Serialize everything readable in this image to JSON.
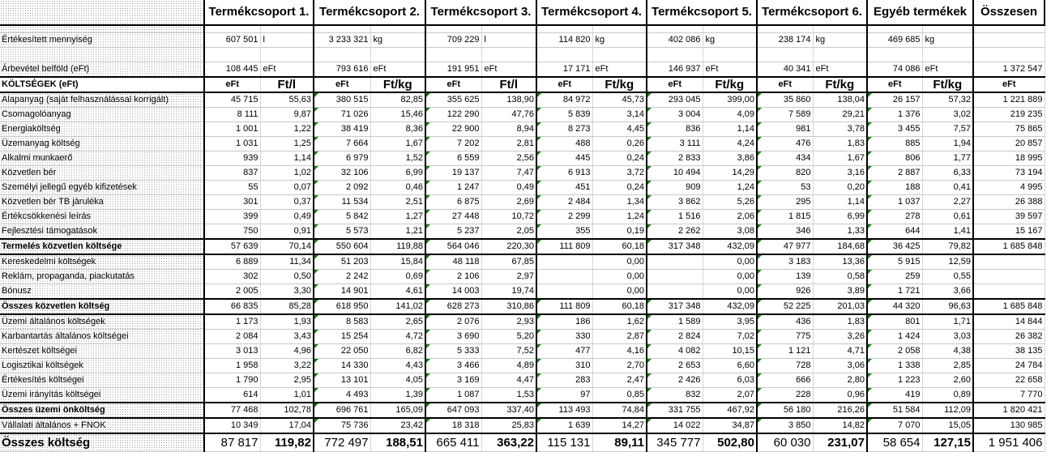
{
  "header": {
    "groups": [
      "Termékcsoport 1.",
      "Termékcsoport 2.",
      "Termékcsoport 3.",
      "Termékcsoport 4.",
      "Termékcsoport 5.",
      "Termékcsoport 6.",
      "Egyéb termékek"
    ],
    "total_label": "Összesen"
  },
  "volume_row": {
    "label": "Értékesített mennyiség",
    "cells": [
      [
        "607 501",
        "l"
      ],
      [
        "3 233 321",
        "kg"
      ],
      [
        "709 229",
        "l"
      ],
      [
        "114 820",
        "kg"
      ],
      [
        "402 086",
        "kg"
      ],
      [
        "238 174",
        "kg"
      ],
      [
        "469 685",
        "kg"
      ]
    ],
    "total": ""
  },
  "revenue_row": {
    "label": "Árbevétel belföld (eFt)",
    "cells": [
      [
        "108 445",
        "eFt"
      ],
      [
        "793 616",
        "eFt"
      ],
      [
        "191 951",
        "eFt"
      ],
      [
        "17 171",
        "eFt"
      ],
      [
        "146 937",
        "eFt"
      ],
      [
        "40 341",
        "eFt"
      ],
      [
        "74 086",
        "eFt"
      ]
    ],
    "total": "1 372 547"
  },
  "column_header": {
    "label": "KÖLTSÉGEK (eFt)",
    "cols": [
      [
        "eFt",
        "Ft/l"
      ],
      [
        "eFt",
        "Ft/kg"
      ],
      [
        "eFt",
        "Ft/l"
      ],
      [
        "eFt",
        "Ft/kg"
      ],
      [
        "eFt",
        "Ft/kg"
      ],
      [
        "eFt",
        "Ft/kg"
      ],
      [
        "eFt",
        "Ft/kg"
      ]
    ],
    "total": "eFt"
  },
  "rows": [
    {
      "type": "item",
      "label": "Alapanyag (saját felhasználással korrigált)",
      "v": [
        "45 715",
        "55,63",
        "380 515",
        "82,85",
        "355 625",
        "138,90",
        "84 972",
        "45,73",
        "293 045",
        "399,00",
        "35 860",
        "138,04",
        "26 157",
        "57,32"
      ],
      "total": "1 221 889"
    },
    {
      "type": "item",
      "label": "Csomagolóanyag",
      "v": [
        "8 111",
        "9,87",
        "71 026",
        "15,46",
        "122 290",
        "47,76",
        "5 839",
        "3,14",
        "3 004",
        "4,09",
        "7 589",
        "29,21",
        "1 376",
        "3,02"
      ],
      "total": "219 235"
    },
    {
      "type": "item",
      "label": "Energiaköltség",
      "v": [
        "1 001",
        "1,22",
        "38 419",
        "8,36",
        "22 900",
        "8,94",
        "8 273",
        "4,45",
        "836",
        "1,14",
        "981",
        "3,78",
        "3 455",
        "7,57"
      ],
      "total": "75 865"
    },
    {
      "type": "item",
      "label": "Üzemanyag költség",
      "v": [
        "1 031",
        "1,25",
        "7 664",
        "1,67",
        "7 202",
        "2,81",
        "488",
        "0,26",
        "3 111",
        "4,24",
        "476",
        "1,83",
        "885",
        "1,94"
      ],
      "total": "20 857"
    },
    {
      "type": "item",
      "label": "Alkalmi munkaerő",
      "v": [
        "939",
        "1,14",
        "6 979",
        "1,52",
        "6 559",
        "2,56",
        "445",
        "0,24",
        "2 833",
        "3,86",
        "434",
        "1,67",
        "806",
        "1,77"
      ],
      "total": "18 995"
    },
    {
      "type": "item",
      "label": "Közvetlen bér",
      "v": [
        "837",
        "1,02",
        "32 106",
        "6,99",
        "19 137",
        "7,47",
        "6 913",
        "3,72",
        "10 494",
        "14,29",
        "820",
        "3,16",
        "2 887",
        "6,33"
      ],
      "total": "73 194"
    },
    {
      "type": "item",
      "label": "Személyi jellegű egyéb kifizetések",
      "v": [
        "55",
        "0,07",
        "2 092",
        "0,46",
        "1 247",
        "0,49",
        "451",
        "0,24",
        "909",
        "1,24",
        "53",
        "0,20",
        "188",
        "0,41"
      ],
      "total": "4 995"
    },
    {
      "type": "item",
      "label": "Közvetlen bér TB járuléka",
      "v": [
        "301",
        "0,37",
        "11 534",
        "2,51",
        "6 875",
        "2,69",
        "2 484",
        "1,34",
        "3 862",
        "5,26",
        "295",
        "1,14",
        "1 037",
        "2,27"
      ],
      "total": "26 388"
    },
    {
      "type": "item",
      "label": "Értékcsökkenési leírás",
      "v": [
        "399",
        "0,49",
        "5 842",
        "1,27",
        "27 448",
        "10,72",
        "2 299",
        "1,24",
        "1 516",
        "2,06",
        "1 815",
        "6,99",
        "278",
        "0,61"
      ],
      "total": "39 597"
    },
    {
      "type": "item",
      "label": "Fejlesztési támogatások",
      "v": [
        "750",
        "0,91",
        "5 573",
        "1,21",
        "5 237",
        "2,05",
        "355",
        "0,19",
        "2 262",
        "3,08",
        "346",
        "1,33",
        "644",
        "1,41"
      ],
      "total": "15 167"
    },
    {
      "type": "sum",
      "label": "Termelés közvetlen költsége",
      "v": [
        "57 639",
        "70,14",
        "550 604",
        "119,88",
        "564 046",
        "220,30",
        "111 809",
        "60,18",
        "317 348",
        "432,09",
        "47 977",
        "184,68",
        "36 425",
        "79,82"
      ],
      "total": "1 685 848"
    },
    {
      "type": "item",
      "label": "Kereskedelmi költségek",
      "v": [
        "6 889",
        "11,34",
        "51 203",
        "15,84",
        "48 118",
        "67,85",
        "",
        "0,00",
        "",
        "0,00",
        "3 183",
        "13,36",
        "5 915",
        "12,59"
      ],
      "total": ""
    },
    {
      "type": "item",
      "label": "Reklám, propaganda, piackutatás",
      "v": [
        "302",
        "0,50",
        "2 242",
        "0,69",
        "2 106",
        "2,97",
        "",
        "0,00",
        "",
        "0,00",
        "139",
        "0,58",
        "259",
        "0,55"
      ],
      "total": ""
    },
    {
      "type": "item",
      "label": "Bónusz",
      "v": [
        "2 005",
        "3,30",
        "14 901",
        "4,61",
        "14 003",
        "19,74",
        "",
        "0,00",
        "",
        "0,00",
        "926",
        "3,89",
        "1 721",
        "3,66"
      ],
      "total": ""
    },
    {
      "type": "sum",
      "label": "Összes közvetlen költség",
      "v": [
        "66 835",
        "85,28",
        "618 950",
        "141,02",
        "628 273",
        "310,86",
        "111 809",
        "60,18",
        "317 348",
        "432,09",
        "52 225",
        "201,03",
        "44 320",
        "96,63"
      ],
      "total": "1 685 848"
    },
    {
      "type": "item",
      "label": "Üzemi általános költségek",
      "v": [
        "1 173",
        "1,93",
        "8 583",
        "2,65",
        "2 076",
        "2,93",
        "186",
        "1,62",
        "1 589",
        "3,95",
        "436",
        "1,83",
        "801",
        "1,71"
      ],
      "total": "14 844"
    },
    {
      "type": "item",
      "label": "Karbantartás általános költségei",
      "v": [
        "2 084",
        "3,43",
        "15 254",
        "4,72",
        "3 690",
        "5,20",
        "330",
        "2,87",
        "2 824",
        "7,02",
        "775",
        "3,26",
        "1 424",
        "3,03"
      ],
      "total": "26 382"
    },
    {
      "type": "item",
      "label": "Kertészet költségei",
      "v": [
        "3 013",
        "4,96",
        "22 050",
        "6,82",
        "5 333",
        "7,52",
        "477",
        "4,16",
        "4 082",
        "10,15",
        "1 121",
        "4,71",
        "2 058",
        "4,38"
      ],
      "total": "38 135"
    },
    {
      "type": "item",
      "label": "Logisztikai költségek",
      "v": [
        "1 958",
        "3,22",
        "14 330",
        "4,43",
        "3 466",
        "4,89",
        "310",
        "2,70",
        "2 653",
        "6,60",
        "728",
        "3,06",
        "1 338",
        "2,85"
      ],
      "total": "24 784"
    },
    {
      "type": "item",
      "label": "Értékesítés költségei",
      "v": [
        "1 790",
        "2,95",
        "13 101",
        "4,05",
        "3 169",
        "4,47",
        "283",
        "2,47",
        "2 426",
        "6,03",
        "666",
        "2,80",
        "1 223",
        "2,60"
      ],
      "total": "22 658"
    },
    {
      "type": "item",
      "label": "Üzemi irányítás költségei",
      "v": [
        "614",
        "1,01",
        "4 493",
        "1,39",
        "1 087",
        "1,53",
        "97",
        "0,85",
        "832",
        "2,07",
        "228",
        "0,96",
        "419",
        "0,89"
      ],
      "total": "7 770"
    },
    {
      "type": "sum",
      "label": "Összes üzemi önköltség",
      "v": [
        "77 468",
        "102,78",
        "696 761",
        "165,09",
        "647 093",
        "337,40",
        "113 493",
        "74,84",
        "331 755",
        "467,92",
        "56 180",
        "216,26",
        "51 584",
        "112,09"
      ],
      "total": "1 820 421"
    },
    {
      "type": "item",
      "label": "Vállalati általános + FNOK",
      "v": [
        "10 349",
        "17,04",
        "75 736",
        "23,42",
        "18 318",
        "25,83",
        "1 639",
        "14,27",
        "14 022",
        "34,87",
        "3 850",
        "14,82",
        "7 070",
        "15,05"
      ],
      "total": "130 985"
    },
    {
      "type": "total",
      "label": "Összes költség",
      "v": [
        "87 817",
        "119,82",
        "772 497",
        "188,51",
        "665 411",
        "363,22",
        "115 131",
        "89,11",
        "345 777",
        "502,80",
        "60 030",
        "231,07",
        "58 654",
        "127,15"
      ],
      "total": "1 951 406"
    }
  ]
}
